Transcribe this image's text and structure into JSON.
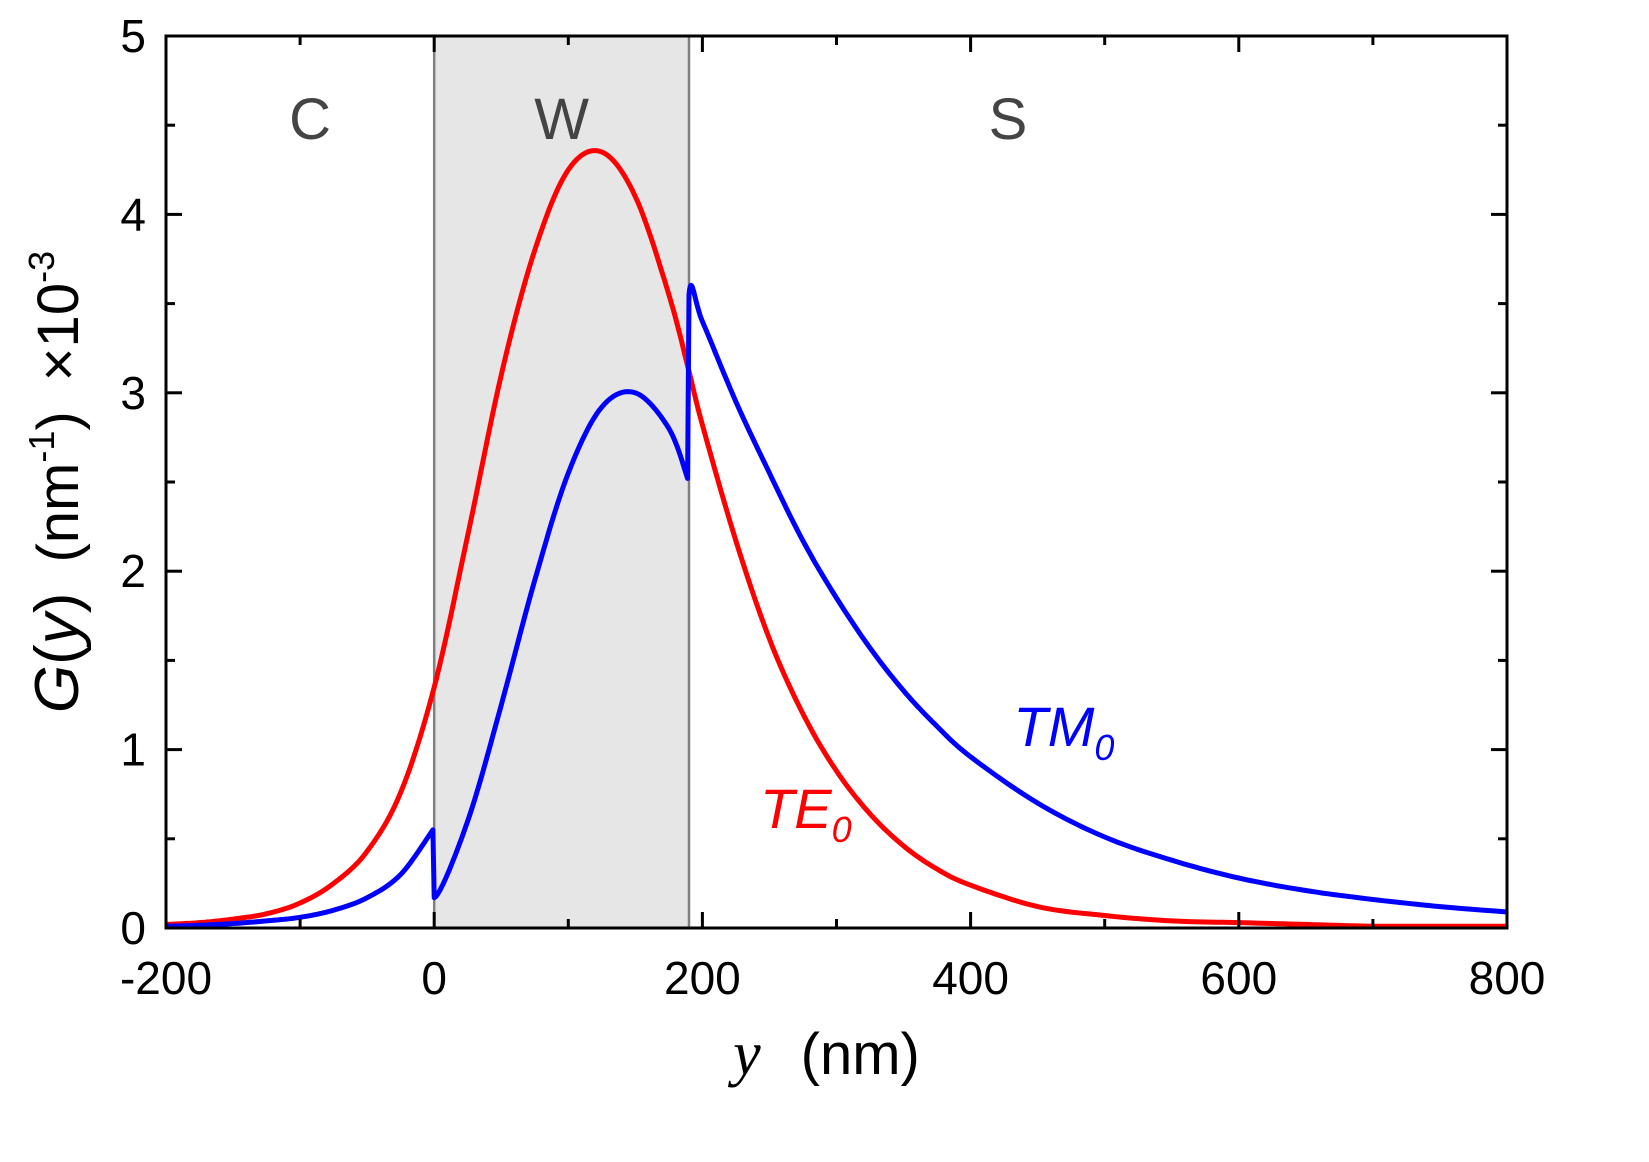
{
  "chart_data": {
    "type": "line",
    "xlabel": {
      "var": "y",
      "unit": "(nm)"
    },
    "ylabel": {
      "prefix": "G(",
      "var": "y",
      "suffix": ")",
      "unit": "(nm",
      "unit_exp": "-1",
      "unit_close": ")",
      "scale": "×10",
      "scale_exp": "-3"
    },
    "xlim": [
      -200,
      800
    ],
    "ylim": [
      0,
      5
    ],
    "x_ticks": [
      -200,
      0,
      200,
      400,
      600,
      800
    ],
    "x_tick_labels": [
      "-200",
      "0",
      "200",
      "400",
      "600",
      "800"
    ],
    "y_ticks": [
      0,
      1,
      2,
      3,
      4,
      5
    ],
    "y_tick_labels": [
      "0",
      "1",
      "2",
      "3",
      "4",
      "5"
    ],
    "grid": false,
    "regions": [
      {
        "label": "C",
        "x_start": -200,
        "x_end": 0,
        "shaded": false
      },
      {
        "label": "W",
        "x_start": 0,
        "x_end": 190,
        "shaded": true,
        "fill": "#e6e6e6"
      },
      {
        "label": "S",
        "x_start": 190,
        "x_end": 800,
        "shaded": false
      }
    ],
    "series": [
      {
        "name": "TE",
        "subscript": "0",
        "color": "#ff0000",
        "x": [
          -200,
          -175,
          -150,
          -125,
          -100,
          -75,
          -50,
          -25,
          0,
          25,
          50,
          75,
          100,
          125,
          150,
          175,
          190,
          200,
          225,
          250,
          275,
          300,
          325,
          350,
          375,
          400,
          450,
          500,
          550,
          600,
          650,
          700,
          750,
          800
        ],
        "y": [
          0.02,
          0.03,
          0.05,
          0.08,
          0.14,
          0.25,
          0.43,
          0.76,
          1.35,
          2.2,
          3.1,
          3.8,
          4.25,
          4.35,
          4.1,
          3.55,
          3.12,
          2.82,
          2.17,
          1.62,
          1.2,
          0.88,
          0.64,
          0.46,
          0.33,
          0.24,
          0.12,
          0.07,
          0.04,
          0.03,
          0.02,
          0.01,
          0.01,
          0.01
        ]
      },
      {
        "name": "TM",
        "subscript": "0",
        "color": "#0000ff",
        "x": [
          -200,
          -175,
          -150,
          -125,
          -100,
          -75,
          -50,
          -25,
          -1,
          0,
          25,
          50,
          75,
          100,
          125,
          150,
          175,
          189,
          190,
          200,
          225,
          250,
          275,
          300,
          325,
          350,
          375,
          400,
          450,
          500,
          550,
          600,
          650,
          700,
          750,
          800
        ],
        "y": [
          0.01,
          0.015,
          0.025,
          0.04,
          0.06,
          0.1,
          0.17,
          0.3,
          0.55,
          0.17,
          0.6,
          1.25,
          1.95,
          2.55,
          2.92,
          3.0,
          2.8,
          2.52,
          3.55,
          3.4,
          2.95,
          2.55,
          2.17,
          1.85,
          1.57,
          1.33,
          1.13,
          0.96,
          0.7,
          0.51,
          0.38,
          0.28,
          0.21,
          0.16,
          0.12,
          0.09
        ]
      }
    ]
  },
  "colors": {
    "shade": "#e6e6e6",
    "boundary": "#808080",
    "te": "#ff0000",
    "tm": "#0000ff"
  }
}
